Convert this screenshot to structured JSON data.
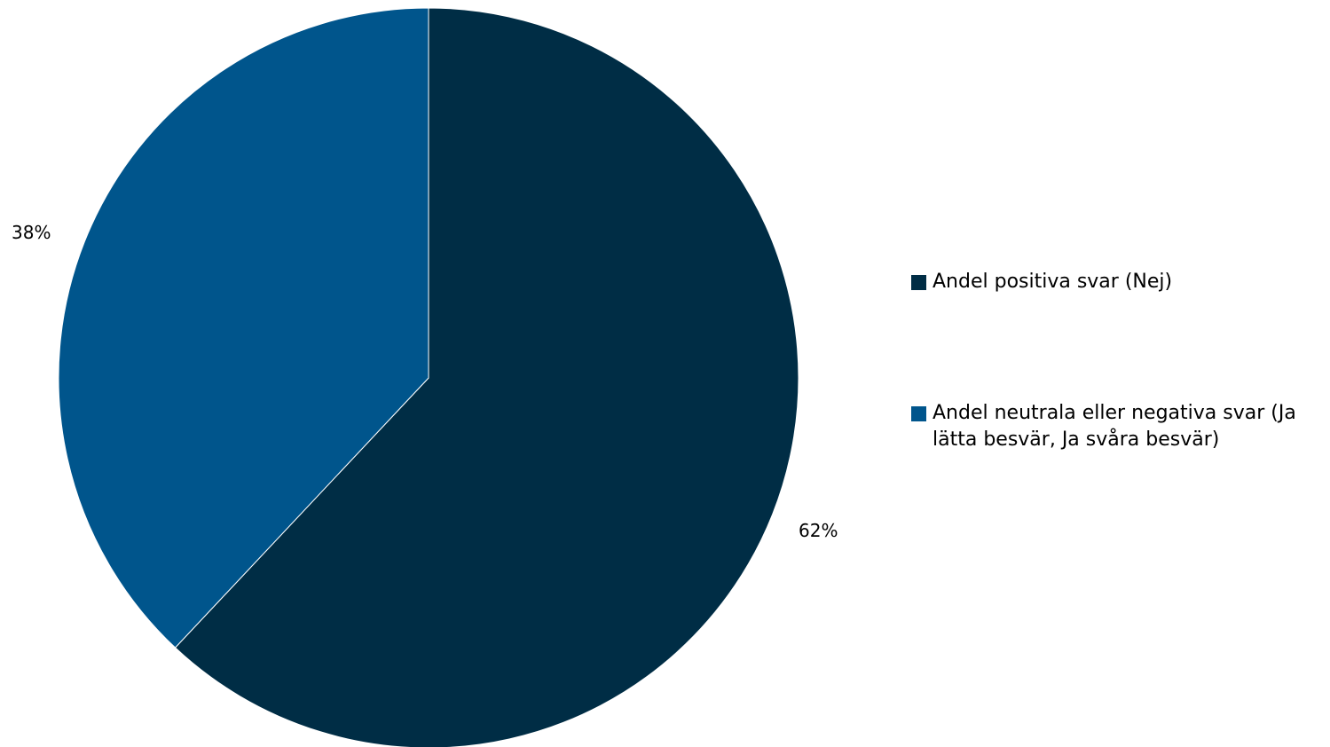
{
  "chart_data": {
    "type": "pie",
    "categories": [
      "Andel positiva svar (Nej)",
      "Andel neutrala eller negativa svar (Ja lätta besvär, Ja svåra besvär)"
    ],
    "values": [
      62,
      38
    ],
    "data_labels": [
      "62%",
      "38%"
    ],
    "colors": [
      "#002d45",
      "#00558c"
    ],
    "start_angle": "12 o'clock",
    "direction": "clockwise",
    "legend_position": "right",
    "title": "",
    "xlabel": "",
    "ylabel": ""
  }
}
